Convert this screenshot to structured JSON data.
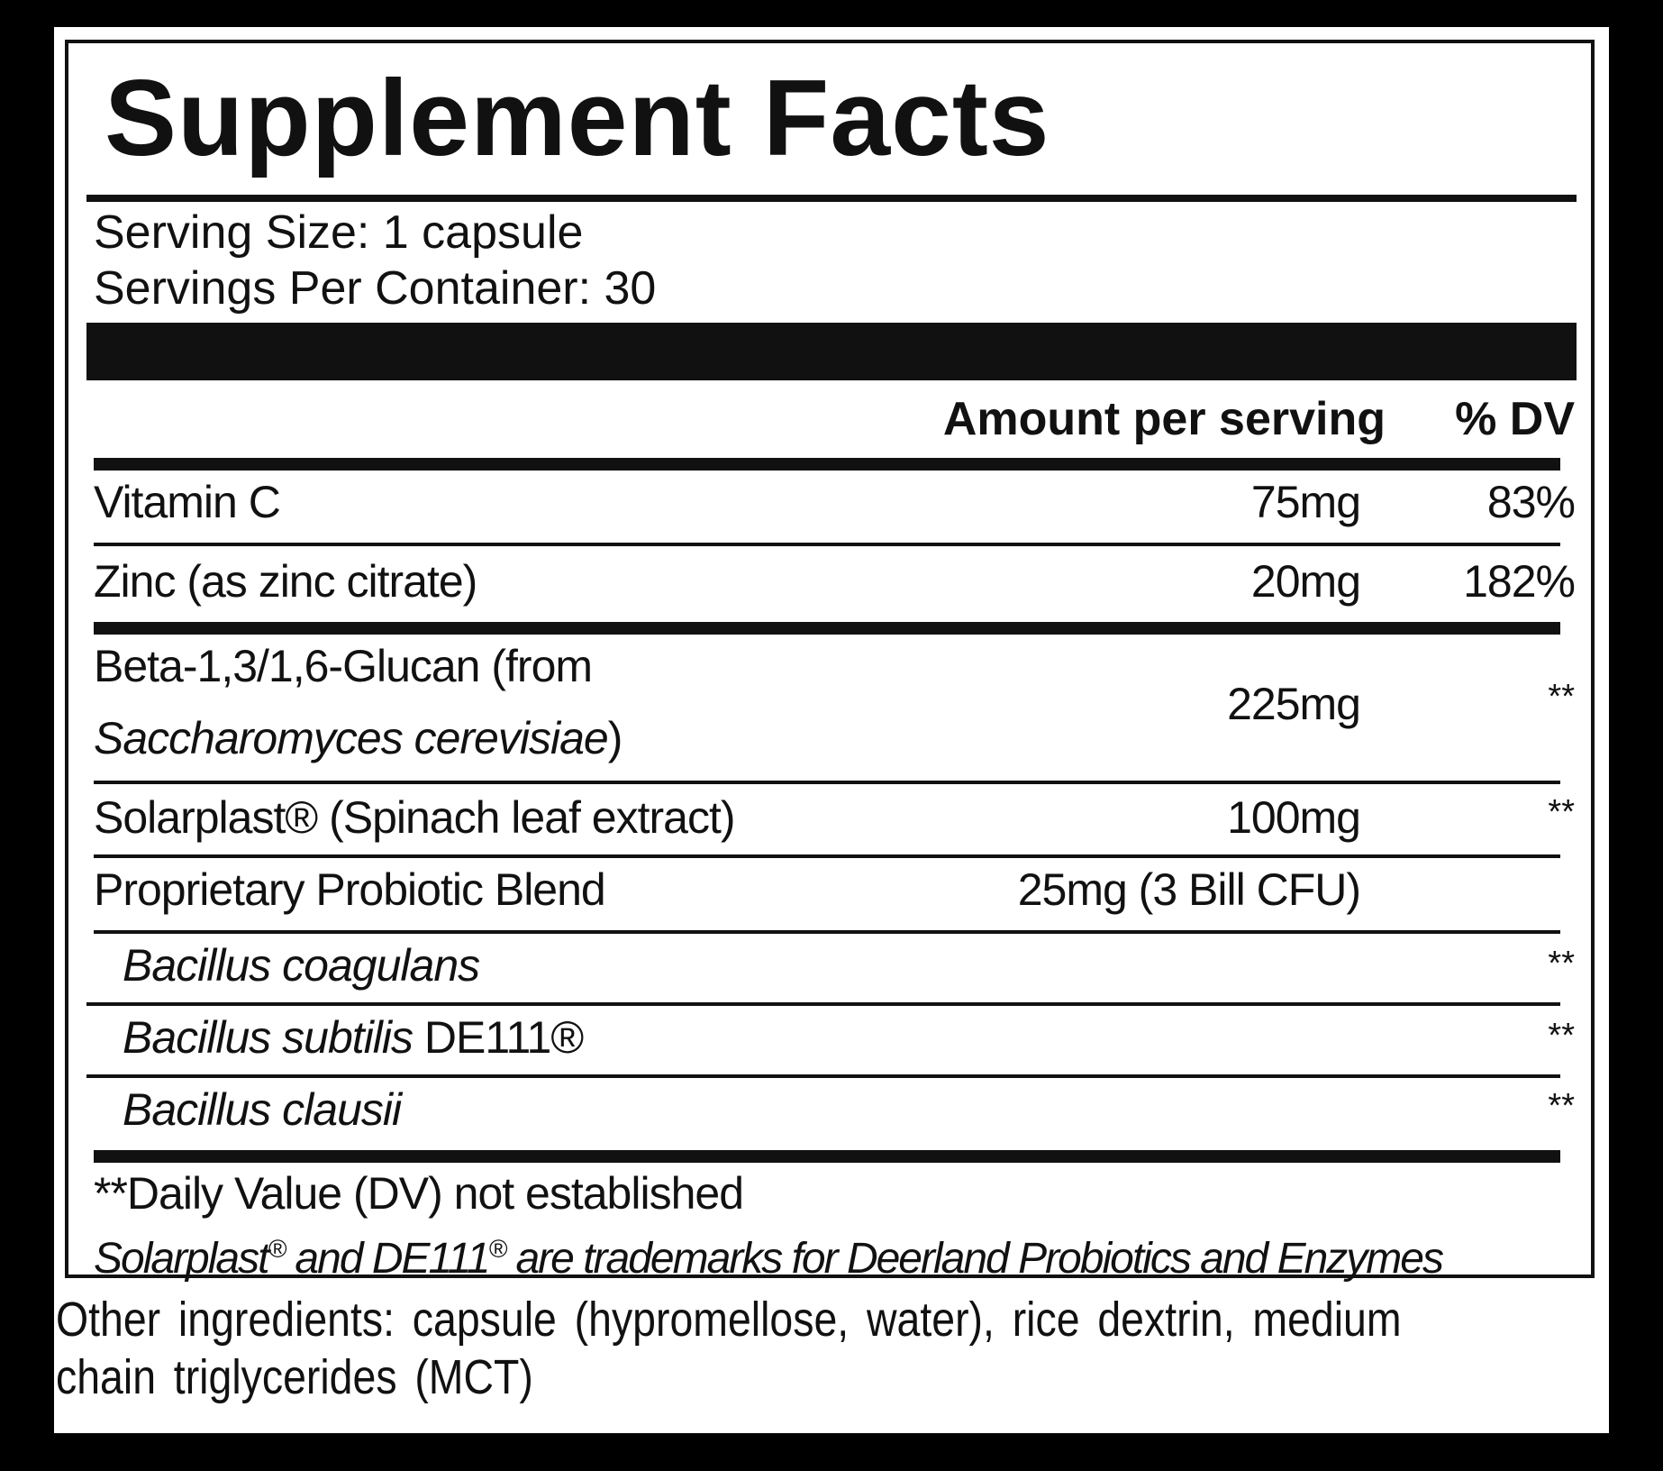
{
  "title": "Supplement Facts",
  "serving": {
    "size": "Serving Size: 1 capsule",
    "per_container": "Servings Per Container: 30"
  },
  "header": {
    "amount": "Amount per serving",
    "dv": "% DV"
  },
  "rows": [
    {
      "name": "Vitamin C",
      "amount": "75mg",
      "dv": "83%"
    },
    {
      "name": "Zinc (as zinc citrate)",
      "amount": "20mg",
      "dv": "182%"
    },
    {
      "name_line1": "Beta-1,3/1,6-Glucan (from",
      "name_line2_italic": "Saccharomyces cerevisiae",
      "name_line2_tail": ")",
      "amount": "225mg",
      "dv": "**"
    },
    {
      "name": "Solarplast® (Spinach leaf extract)",
      "amount": "100mg",
      "dv": "**"
    },
    {
      "name": "Proprietary Probiotic Blend",
      "amount": "25mg (3 Bill CFU)",
      "dv": ""
    }
  ],
  "strains": [
    {
      "italic": "Bacillus coagulans",
      "tail": "",
      "dv": "**"
    },
    {
      "italic": "Bacillus subtilis",
      "tail": " DE111®",
      "dv": "**"
    },
    {
      "italic": "Bacillus clausii",
      "tail": "",
      "dv": "**"
    }
  ],
  "footnote": "**Daily Value (DV) not established",
  "trademark": {
    "part1": "Solarplast",
    "reg": "®",
    "part2": " and DE111",
    "part3": " are trademarks for Deerland Probiotics and Enzymes"
  },
  "other_ingredients": {
    "line1": "Other ingredients: capsule (hypromellose, water), rice dextrin, medium",
    "line2": "chain triglycerides (MCT)"
  }
}
